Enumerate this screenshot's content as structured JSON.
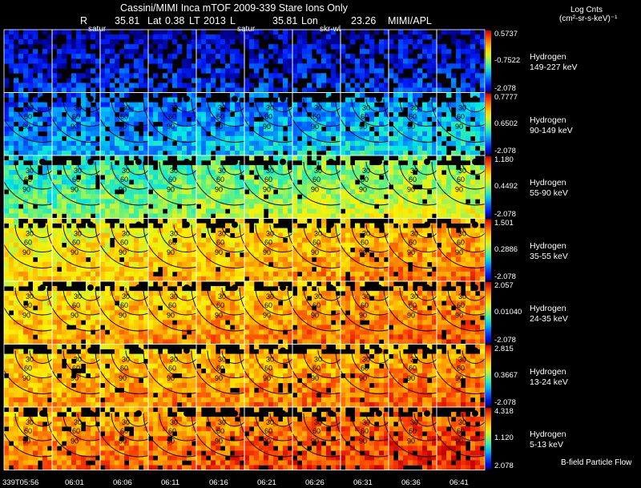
{
  "header": {
    "title": "Cassini/MIMI Inca mTOF  2009-339   Stare   Ions Only",
    "r_label": "R",
    "r_value": "35.81",
    "lat_label": "Lat",
    "lat_value": "0.38",
    "lt_label": "LT",
    "lt_value": "2013",
    "l_label": "L",
    "l_value": "35.81",
    "lon_label": "Lon",
    "lon_value": "23.26",
    "credit": "MIMI/APL",
    "overlays": [
      "satur",
      "satur",
      "skr-wl"
    ]
  },
  "units": {
    "line1": "Log Cnts",
    "line2": "(cm²-sr-s-keV)⁻¹"
  },
  "footer_note": "B-field Particle Flow",
  "chart_data": {
    "type": "heatmap",
    "x_tick_labels": [
      "339T05:56",
      "06:01",
      "06:06",
      "06:11",
      "06:16",
      "06:21",
      "06:26",
      "06:31",
      "06:36",
      "06:41"
    ],
    "contour_labels": [
      "30",
      "60",
      "90"
    ],
    "rows": [
      {
        "species": "Hydrogen",
        "energy": "149-227 keV",
        "max": "0.5737",
        "mid": "-0.7522",
        "min": "-2.078",
        "level": 0.05,
        "trend": 0.02,
        "dark": 0.3
      },
      {
        "species": "Hydrogen",
        "energy": "90-149 keV",
        "max": "0.7777",
        "mid": "0.6502",
        "min": "-2.078",
        "level": 0.18,
        "trend": 0.1,
        "dark": 0.1
      },
      {
        "species": "Hydrogen",
        "energy": "55-90 keV",
        "max": "1.180",
        "mid": "0.4492",
        "min": "-2.078",
        "level": 0.38,
        "trend": 0.15,
        "dark": 0.04
      },
      {
        "species": "Hydrogen",
        "energy": "35-55 keV",
        "max": "1.501",
        "mid": "0.2886",
        "min": "-2.078",
        "level": 0.6,
        "trend": 0.15,
        "dark": 0.04
      },
      {
        "species": "Hydrogen",
        "energy": "24-35 keV",
        "max": "2.057",
        "mid": "0.01040",
        "min": "-2.078",
        "level": 0.66,
        "trend": 0.12,
        "dark": 0.04
      },
      {
        "species": "Hydrogen",
        "energy": "13-24 keV",
        "max": "2.815",
        "mid": "0.3667",
        "min": "-2.078",
        "level": 0.68,
        "trend": 0.1,
        "dark": 0.05
      },
      {
        "species": "Hydrogen",
        "energy": "5-13 keV",
        "max": "4.318",
        "mid": "1.120",
        "min": "2.078",
        "level": 0.74,
        "trend": 0.12,
        "dark": 0.1
      }
    ]
  }
}
